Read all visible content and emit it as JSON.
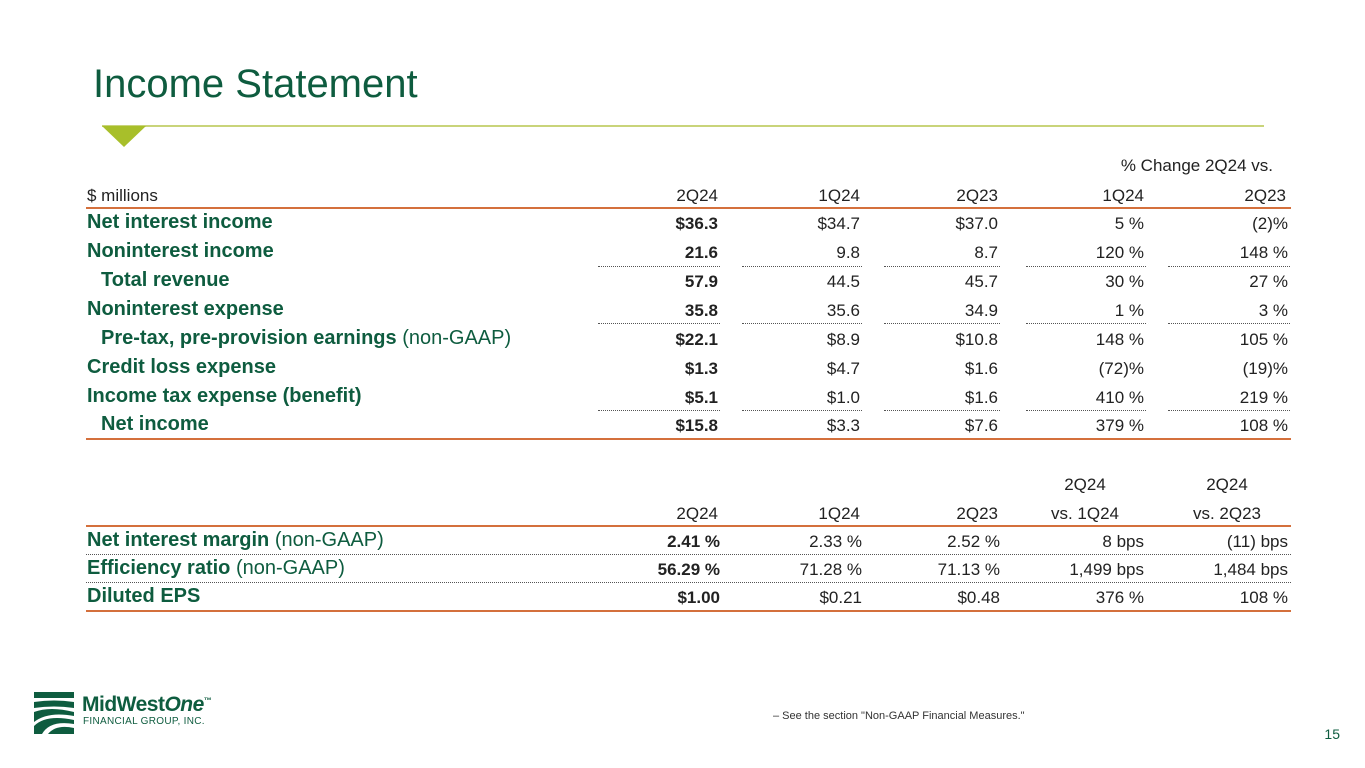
{
  "title": "Income Statement",
  "table1": {
    "super_header": "% Change 2Q24 vs.",
    "unit_label": "$ millions",
    "columns": [
      "2Q24",
      "1Q24",
      "2Q23",
      "1Q24",
      "2Q23"
    ],
    "rows": [
      {
        "label": "Net interest income",
        "suffix": "",
        "values": [
          "$36.3",
          "$34.7",
          "$37.0",
          "5 %",
          "(2)%"
        ]
      },
      {
        "label": "Noninterest income",
        "suffix": "",
        "values": [
          "21.6",
          "9.8",
          "8.7",
          "120 %",
          "148 %"
        ]
      },
      {
        "label": "Total revenue",
        "suffix": "",
        "values": [
          "57.9",
          "44.5",
          "45.7",
          "30 %",
          "27 %"
        ]
      },
      {
        "label": "Noninterest expense",
        "suffix": "",
        "values": [
          "35.8",
          "35.6",
          "34.9",
          "1 %",
          "3 %"
        ]
      },
      {
        "label": "Pre-tax, pre-provision earnings",
        "suffix": " (non-GAAP)",
        "values": [
          "$22.1",
          "$8.9",
          "$10.8",
          "148 %",
          "105 %"
        ]
      },
      {
        "label": "Credit loss expense",
        "suffix": "",
        "values": [
          "$1.3",
          "$4.7",
          "$1.6",
          "(72)%",
          "(19)%"
        ]
      },
      {
        "label": "Income tax expense (benefit)",
        "suffix": "",
        "values": [
          "$5.1",
          "$1.0",
          "$1.6",
          "410 %",
          "219 %"
        ]
      },
      {
        "label": "Net income",
        "suffix": "",
        "values": [
          "$15.8",
          "$3.3",
          "$7.6",
          "379 %",
          "108 %"
        ]
      }
    ]
  },
  "table2": {
    "columns_top": [
      "",
      "",
      "",
      "2Q24",
      "2Q24"
    ],
    "columns": [
      "2Q24",
      "1Q24",
      "2Q23",
      "vs. 1Q24",
      "vs. 2Q23"
    ],
    "rows": [
      {
        "label": "Net interest margin",
        "suffix": " (non-GAAP)",
        "values": [
          "2.41 %",
          "2.33 %",
          "2.52 %",
          "8 bps",
          "(11) bps"
        ]
      },
      {
        "label": "Efficiency ratio",
        "suffix": " (non-GAAP)",
        "values": [
          "56.29 %",
          "71.28 %",
          "71.13 %",
          "1,499 bps",
          "1,484 bps"
        ]
      },
      {
        "label": "Diluted EPS",
        "suffix": "",
        "values": [
          "$1.00",
          "$0.21",
          "$0.48",
          "376 %",
          "108 %"
        ]
      }
    ]
  },
  "footnote": "–     See the section \"Non-GAAP Financial Measures.\"",
  "page_number": "15",
  "logo": {
    "name_part1": "MidWest",
    "name_part2": "One",
    "tm": "™",
    "subtitle": "FINANCIAL GROUP, INC."
  }
}
